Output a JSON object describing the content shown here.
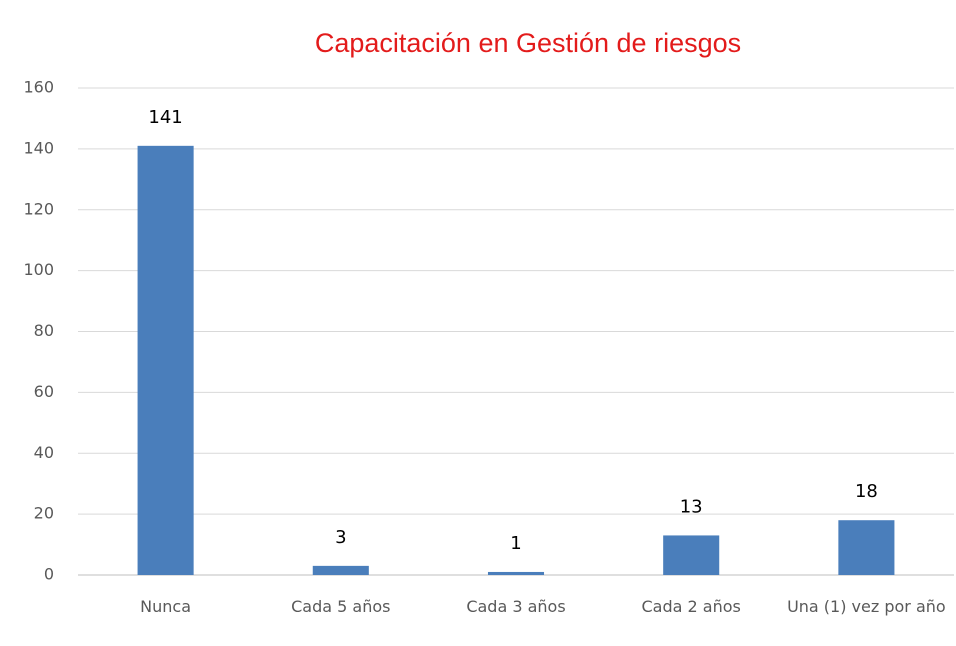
{
  "chart_data": {
    "type": "bar",
    "title": "Capacitación en Gestión de riesgos",
    "categories": [
      "Nunca",
      "Cada 5 años",
      "Cada 3 años",
      "Cada 2 años",
      "Una (1) vez por año"
    ],
    "values": [
      141,
      3,
      1,
      13,
      18
    ],
    "color": "#4a7ebb",
    "ylim": [
      0,
      160
    ],
    "yticks": [
      0,
      20,
      40,
      60,
      80,
      100,
      120,
      140,
      160
    ],
    "grid": true
  }
}
